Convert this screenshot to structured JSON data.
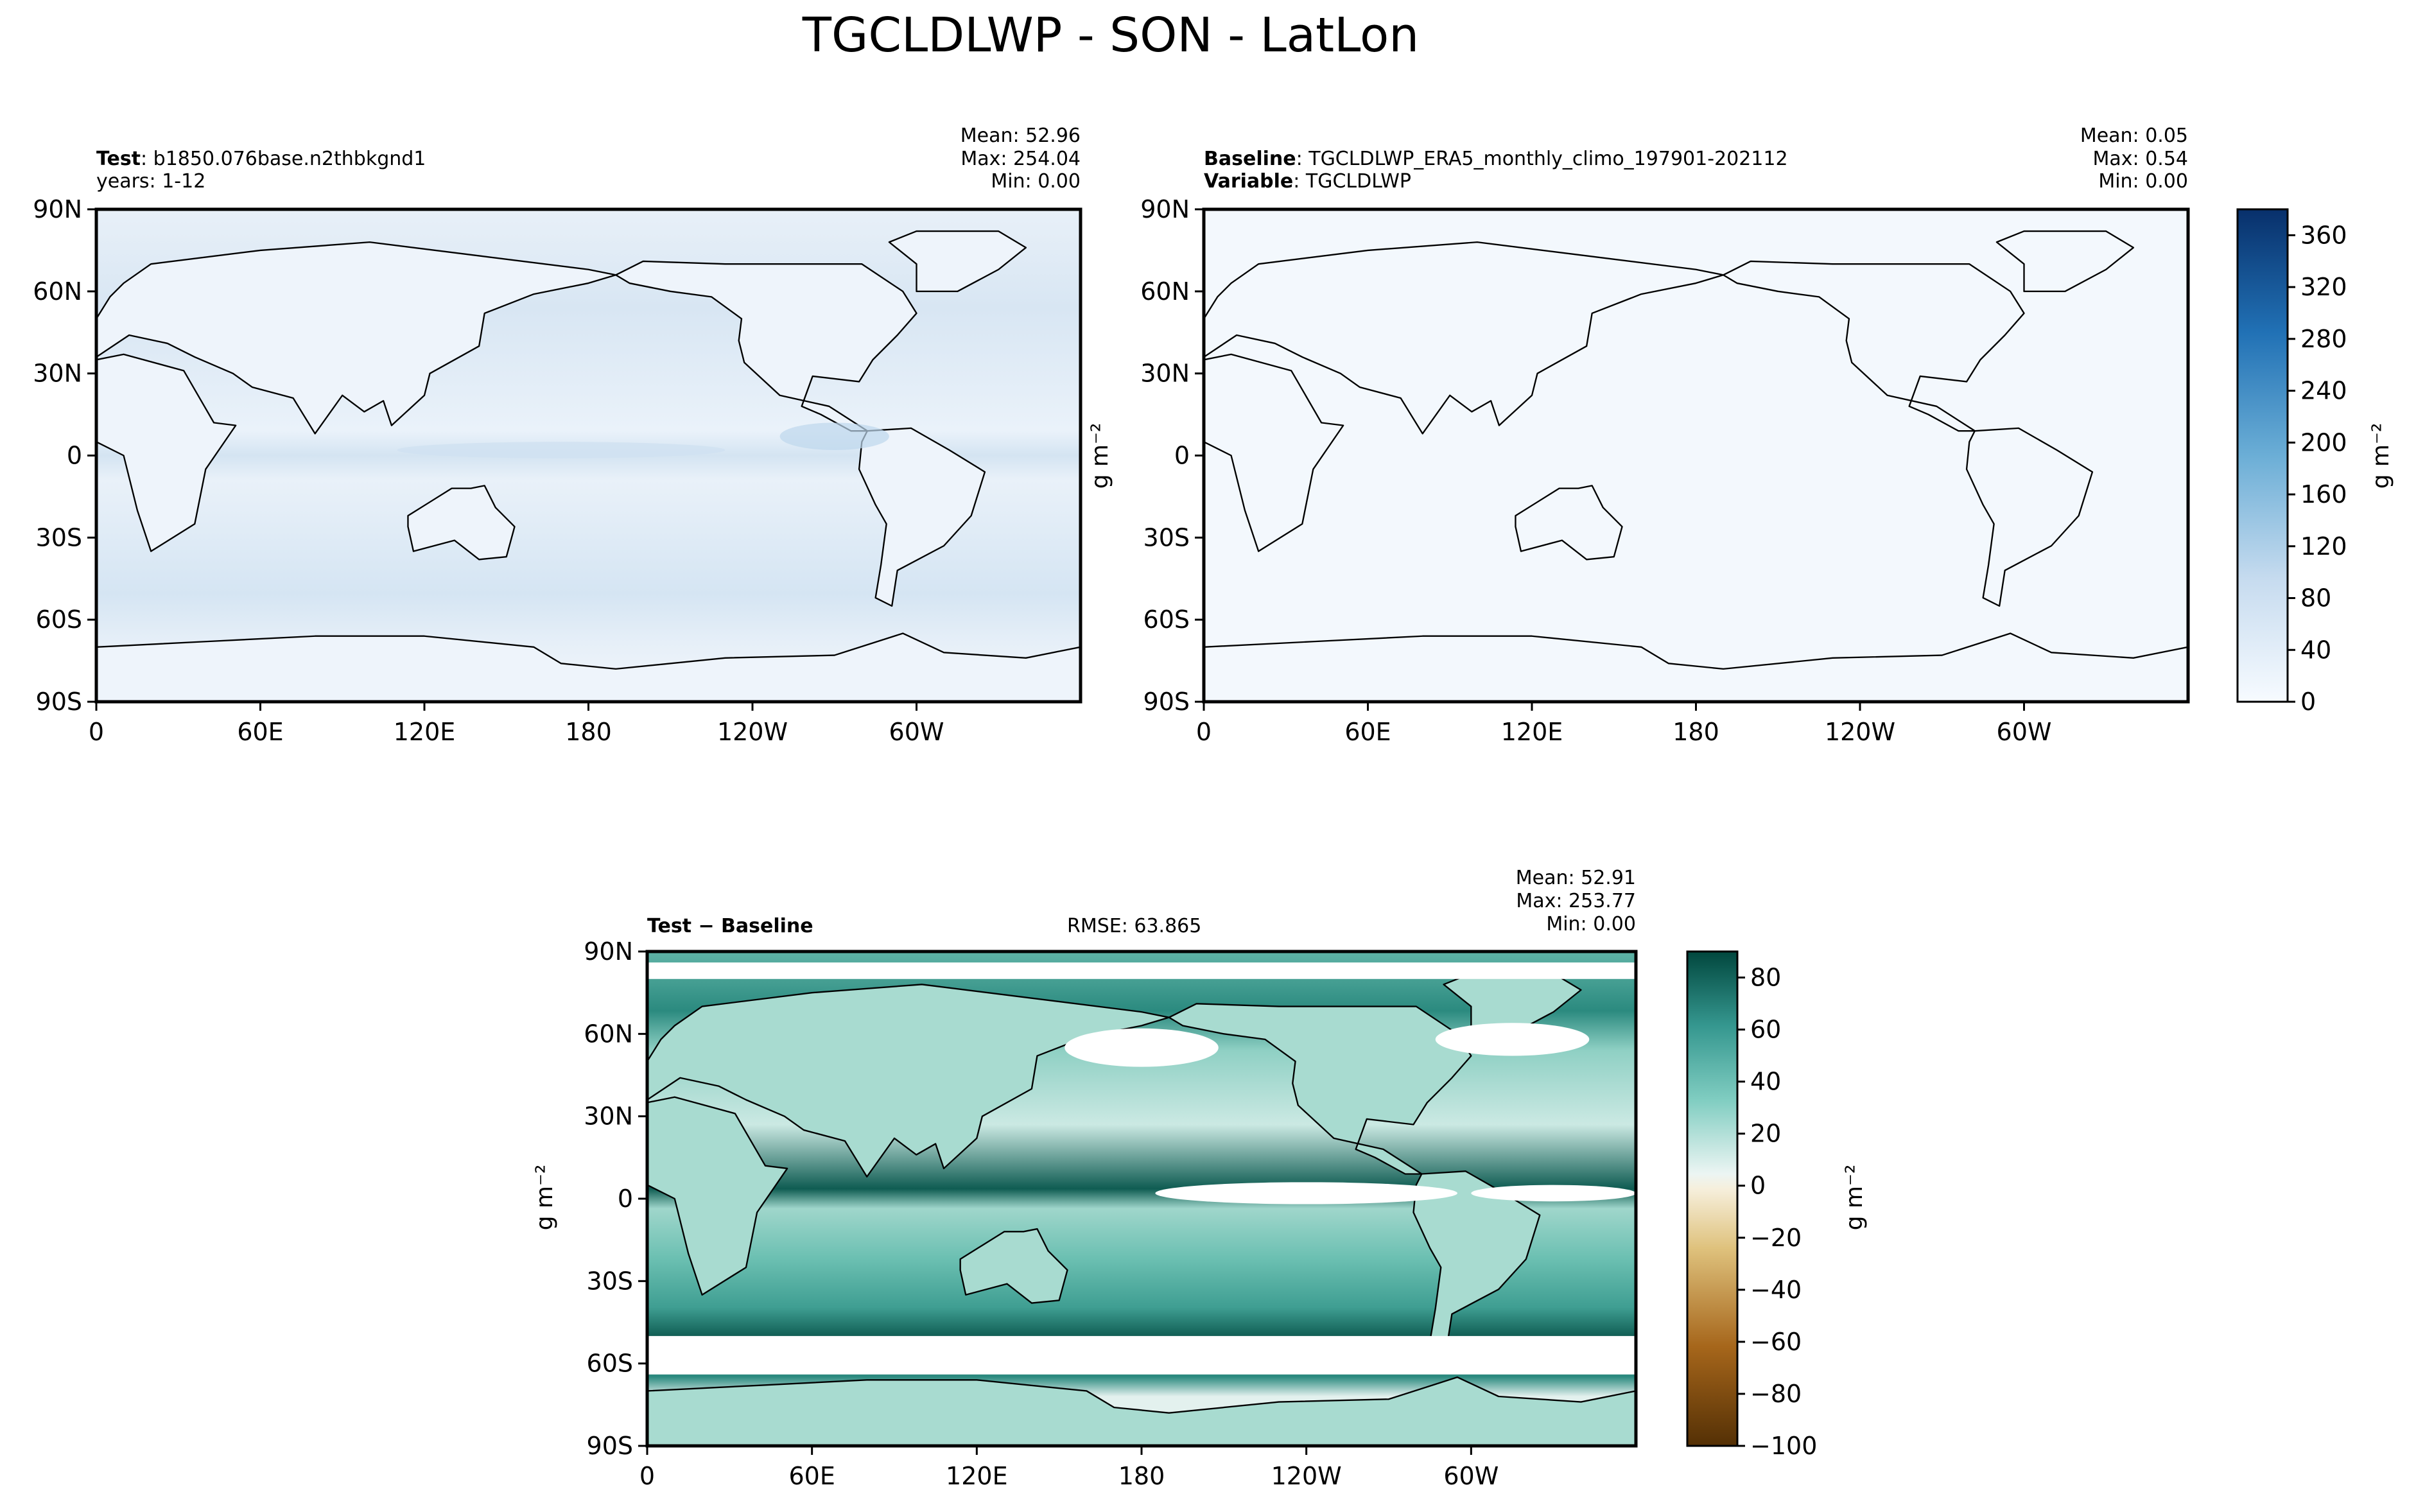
{
  "figure_title": "TGCLDLWP - SON - LatLon",
  "colors": {
    "ocean_test": "#dfeaf6",
    "ocean_test_light": "#eef4fb",
    "baseline_fill": "#f3f8fd",
    "land_fill_test": "#f4f8fc",
    "diff_light": "#e3f1ee",
    "diff_mid": "#9fd6cb",
    "diff_dark": "#2b8a7f",
    "diff_darkest": "#0f5c52",
    "diff_white": "#ffffff"
  },
  "panels": {
    "test": {
      "label_bold": "Test",
      "label_text": ": b1850.076base.n2thbkgnd1",
      "line2": "years: 1-12",
      "stats": [
        "Mean: 52.96",
        "Max: 254.04",
        "Min:  0.00"
      ]
    },
    "baseline": {
      "label_bold": "Baseline",
      "label_text": ": TGCLDLWP_ERA5_monthly_climo_197901-202112",
      "line2_bold": "Variable",
      "line2_text": ": TGCLDLWP",
      "stats": [
        "Mean:  0.05",
        "Max:  0.54",
        "Min:  0.00"
      ],
      "ylabel": "g m⁻²"
    },
    "diff": {
      "label": "Test − Baseline",
      "rmse": "RMSE: 63.865",
      "stats": [
        "Mean: 52.91",
        "Max: 253.77",
        "Min:  0.00"
      ],
      "ylabel": "g m⁻²"
    }
  },
  "axes": {
    "lat_ticks": [
      "90N",
      "60N",
      "30N",
      "0",
      "30S",
      "60S",
      "90S"
    ],
    "lon_ticks": [
      "0",
      "60E",
      "120E",
      "180",
      "120W",
      "60W"
    ]
  },
  "colorbar_top": {
    "label": "g m⁻²",
    "ticks": [
      "360",
      "320",
      "280",
      "240",
      "200",
      "160",
      "120",
      "80",
      "40",
      "0"
    ]
  },
  "colorbar_diff": {
    "label": "g m⁻²",
    "ticks": [
      "80",
      "60",
      "40",
      "20",
      "0",
      "−20",
      "−40",
      "−60",
      "−80",
      "−100"
    ]
  },
  "chart_data": [
    {
      "type": "heatmap",
      "title": "Test",
      "variable": "TGCLDLWP",
      "units": "g m⁻²",
      "xlim": [
        0,
        360
      ],
      "ylim": [
        -90,
        90
      ],
      "mean": 52.96,
      "max": 254.04,
      "min": 0.0
    },
    {
      "type": "heatmap",
      "title": "Baseline",
      "variable": "TGCLDLWP",
      "units": "g m⁻²",
      "xlim": [
        0,
        360
      ],
      "ylim": [
        -90,
        90
      ],
      "mean": 0.05,
      "max": 0.54,
      "min": 0.0,
      "colorbar_range": [
        0,
        380
      ]
    },
    {
      "type": "heatmap",
      "title": "Test − Baseline",
      "units": "g m⁻²",
      "xlim": [
        0,
        360
      ],
      "ylim": [
        -90,
        90
      ],
      "mean": 52.91,
      "max": 253.77,
      "min": 0.0,
      "rmse": 63.865,
      "colorbar_range": [
        -100,
        90
      ]
    }
  ]
}
